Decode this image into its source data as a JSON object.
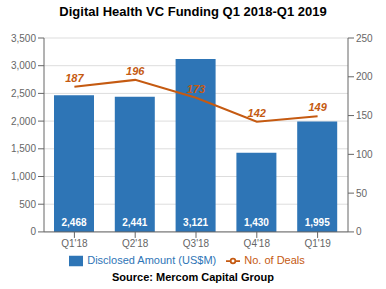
{
  "chart_data": {
    "type": "bar",
    "title": "Digital Health VC Funding Q1 2018-Q1 2019",
    "categories": [
      "Q1'18",
      "Q2'18",
      "Q3'18",
      "Q4'18",
      "Q1'19"
    ],
    "series": [
      {
        "name": "Disclosed Amount (US$M)",
        "type": "bar",
        "color": "#2E75B6",
        "values": [
          2468,
          2441,
          3121,
          1430,
          1995
        ],
        "value_labels": [
          "2,468",
          "2,441",
          "3,121",
          "1,430",
          "1,995"
        ],
        "data_labels": true
      },
      {
        "name": "No. of Deals",
        "type": "line",
        "color": "#C55A11",
        "axis": "y2",
        "values": [
          187,
          196,
          173,
          142,
          149
        ],
        "data_labels": true
      }
    ],
    "ylim": [
      0,
      3500
    ],
    "yticks": [
      0,
      500,
      {
        "value": 1000,
        "label": "1,000"
      },
      {
        "value": 1500,
        "label": "1,500"
      },
      {
        "value": 2000,
        "label": "2,000"
      },
      {
        "value": 2500,
        "label": "2,500"
      },
      {
        "value": 3000,
        "label": "3,000"
      },
      {
        "value": 3500,
        "label": "3,500"
      }
    ],
    "y2lim": [
      0,
      250
    ],
    "y2ticks": [
      0,
      50,
      100,
      150,
      200,
      250
    ],
    "grid": true,
    "legend": "bottom",
    "annotations": [
      "Source: Mercom Capital Group"
    ]
  }
}
